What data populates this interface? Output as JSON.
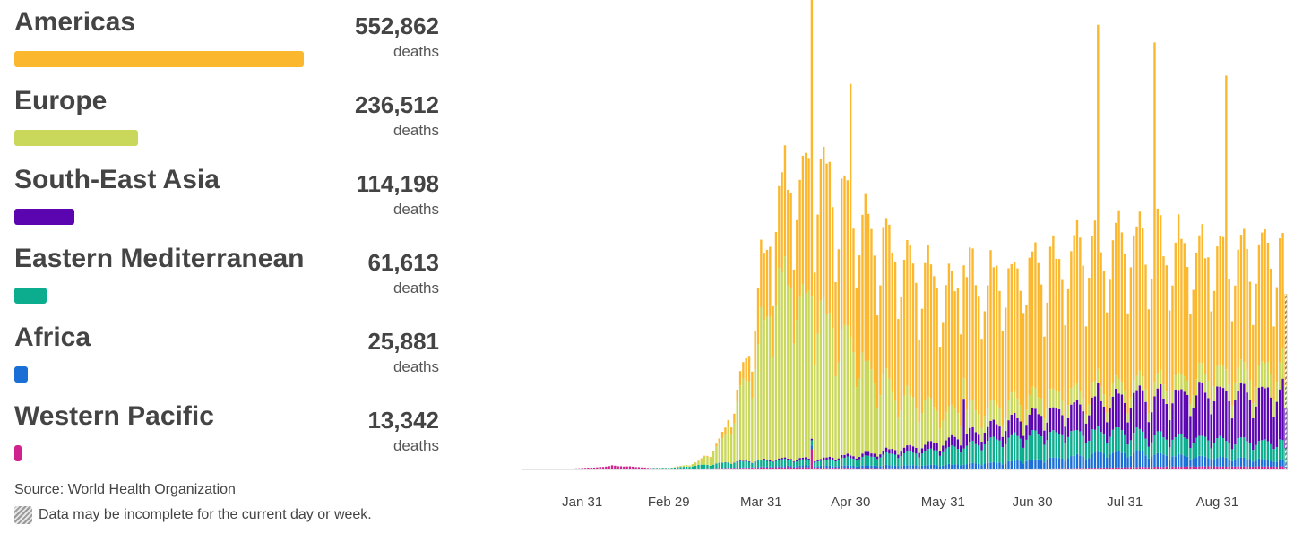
{
  "legend": {
    "regions": [
      {
        "name": "Americas",
        "value": "552,862",
        "unit": "deaths",
        "color": "#fbb82e",
        "share": 1.0
      },
      {
        "name": "Europe",
        "value": "236,512",
        "unit": "deaths",
        "color": "#c9d75a",
        "share": 0.428
      },
      {
        "name": "South-East Asia",
        "value": "114,198",
        "unit": "deaths",
        "color": "#5a05b0",
        "share": 0.2066
      },
      {
        "name": "Eastern Mediterranean",
        "value": "61,613",
        "unit": "deaths",
        "color": "#0bad8e",
        "share": 0.1114
      },
      {
        "name": "Africa",
        "value": "25,881",
        "unit": "deaths",
        "color": "#1a6fd6",
        "share": 0.0468
      },
      {
        "name": "Western Pacific",
        "value": "13,342",
        "unit": "deaths",
        "color": "#d0228e",
        "share": 0.0241
      }
    ]
  },
  "source": "Source: World Health Organization",
  "note": "Data may be incomplete for the current day or week.",
  "chart_data": {
    "type": "bar",
    "stacked": true,
    "x_range": [
      "2020-01-11",
      "2020-09-23"
    ],
    "x_ticks": [
      {
        "date": "2020-01-31",
        "label": "Jan 31"
      },
      {
        "date": "2020-02-29",
        "label": "Feb 29"
      },
      {
        "date": "2020-03-31",
        "label": "Mar 31"
      },
      {
        "date": "2020-04-30",
        "label": "Apr 30"
      },
      {
        "date": "2020-05-31",
        "label": "May 31"
      },
      {
        "date": "2020-06-30",
        "label": "Jun 30"
      },
      {
        "date": "2020-07-31",
        "label": "Jul 31"
      },
      {
        "date": "2020-08-31",
        "label": "Aug 31"
      }
    ],
    "ylim": [
      0,
      12000
    ],
    "grid": false,
    "incomplete_last_day": true,
    "series_order": [
      "Western Pacific",
      "Africa",
      "Eastern Mediterranean",
      "South-East Asia",
      "Europe",
      "Americas"
    ],
    "series_keys": {
      "Americas": "am",
      "Europe": "eu",
      "South-East Asia": "sea",
      "Eastern Mediterranean": "em",
      "Africa": "af",
      "Western Pacific": "wp"
    },
    "colors": {
      "Americas": "#fbb82e",
      "Europe": "#c9d75a",
      "South-East Asia": "#5a05b0",
      "Eastern Mediterranean": "#0bad8e",
      "Africa": "#1a6fd6",
      "Western Pacific": "#d0228e"
    },
    "note": "Approximate daily deaths estimated from bar heights (shape-level estimate).",
    "anchors": {
      "wp": [
        [
          "2020-01-11",
          0
        ],
        [
          "2020-01-25",
          10
        ],
        [
          "2020-02-05",
          60
        ],
        [
          "2020-02-10",
          100
        ],
        [
          "2020-02-15",
          80
        ],
        [
          "2020-02-25",
          25
        ],
        [
          "2020-03-05",
          20
        ],
        [
          "2020-04-05",
          60
        ],
        [
          "2020-05-01",
          40
        ],
        [
          "2020-06-01",
          25
        ],
        [
          "2020-07-05",
          25
        ],
        [
          "2020-08-01",
          60
        ],
        [
          "2020-08-25",
          80
        ],
        [
          "2020-09-23",
          75
        ]
      ],
      "af": [
        [
          "2020-01-11",
          0
        ],
        [
          "2020-03-10",
          0
        ],
        [
          "2020-03-25",
          10
        ],
        [
          "2020-04-15",
          45
        ],
        [
          "2020-05-10",
          65
        ],
        [
          "2020-06-01",
          95
        ],
        [
          "2020-06-20",
          165
        ],
        [
          "2020-07-10",
          285
        ],
        [
          "2020-07-25",
          380
        ],
        [
          "2020-08-05",
          380
        ],
        [
          "2020-08-20",
          270
        ],
        [
          "2020-09-10",
          200
        ],
        [
          "2020-09-23",
          170
        ]
      ],
      "em": [
        [
          "2020-01-11",
          0
        ],
        [
          "2020-02-20",
          0
        ],
        [
          "2020-03-01",
          25
        ],
        [
          "2020-03-20",
          140
        ],
        [
          "2020-04-05",
          165
        ],
        [
          "2020-04-20",
          140
        ],
        [
          "2020-05-10",
          270
        ],
        [
          "2020-06-01",
          430
        ],
        [
          "2020-06-20",
          620
        ],
        [
          "2020-07-01",
          660
        ],
        [
          "2020-07-20",
          590
        ],
        [
          "2020-08-10",
          480
        ],
        [
          "2020-09-01",
          470
        ],
        [
          "2020-09-23",
          480
        ]
      ],
      "sea": [
        [
          "2020-01-11",
          0
        ],
        [
          "2020-03-15",
          0
        ],
        [
          "2020-03-31",
          20
        ],
        [
          "2020-04-20",
          50
        ],
        [
          "2020-05-10",
          100
        ],
        [
          "2020-05-31",
          200
        ],
        [
          "2020-06-20",
          420
        ],
        [
          "2020-07-10",
          620
        ],
        [
          "2020-07-31",
          920
        ],
        [
          "2020-08-15",
          1100
        ],
        [
          "2020-09-05",
          1280
        ],
        [
          "2020-09-23",
          1350
        ]
      ],
      "eu": [
        [
          "2020-01-11",
          0
        ],
        [
          "2020-02-20",
          0
        ],
        [
          "2020-03-01",
          5
        ],
        [
          "2020-03-10",
          80
        ],
        [
          "2020-03-18",
          550
        ],
        [
          "2020-03-25",
          1900
        ],
        [
          "2020-03-31",
          3400
        ],
        [
          "2020-04-05",
          4600
        ],
        [
          "2020-04-12",
          4550
        ],
        [
          "2020-04-18",
          4000
        ],
        [
          "2020-04-25",
          3400
        ],
        [
          "2020-05-05",
          2300
        ],
        [
          "2020-05-15",
          1500
        ],
        [
          "2020-05-31",
          800
        ],
        [
          "2020-06-15",
          500
        ],
        [
          "2020-07-01",
          480
        ],
        [
          "2020-07-15",
          380
        ],
        [
          "2020-08-01",
          330
        ],
        [
          "2020-08-20",
          400
        ],
        [
          "2020-09-10",
          580
        ],
        [
          "2020-09-23",
          700
        ]
      ],
      "am": [
        [
          "2020-01-11",
          0
        ],
        [
          "2020-03-05",
          0
        ],
        [
          "2020-03-15",
          30
        ],
        [
          "2020-03-25",
          400
        ],
        [
          "2020-04-01",
          1700
        ],
        [
          "2020-04-08",
          2500
        ],
        [
          "2020-04-15",
          3400
        ],
        [
          "2020-04-22",
          3600
        ],
        [
          "2020-04-30",
          3800
        ],
        [
          "2020-05-15",
          3700
        ],
        [
          "2020-05-31",
          3300
        ],
        [
          "2020-06-15",
          3400
        ],
        [
          "2020-07-01",
          3300
        ],
        [
          "2020-07-20",
          3800
        ],
        [
          "2020-08-05",
          3800
        ],
        [
          "2020-08-20",
          3400
        ],
        [
          "2020-09-05",
          3100
        ],
        [
          "2020-09-23",
          2900
        ]
      ]
    },
    "spikes": {
      "2020-04-17": {
        "am": 5100,
        "wp": 500,
        "af": 60
      },
      "2020-04-30": {
        "am": 2700
      },
      "2020-06-07": {
        "sea": 1100
      },
      "2020-06-27": {
        "am": 700
      },
      "2020-07-22": {
        "am": 5200,
        "sea": 350
      },
      "2020-08-10": {
        "am": 5200
      },
      "2020-09-03": {
        "am": 4400
      }
    }
  }
}
